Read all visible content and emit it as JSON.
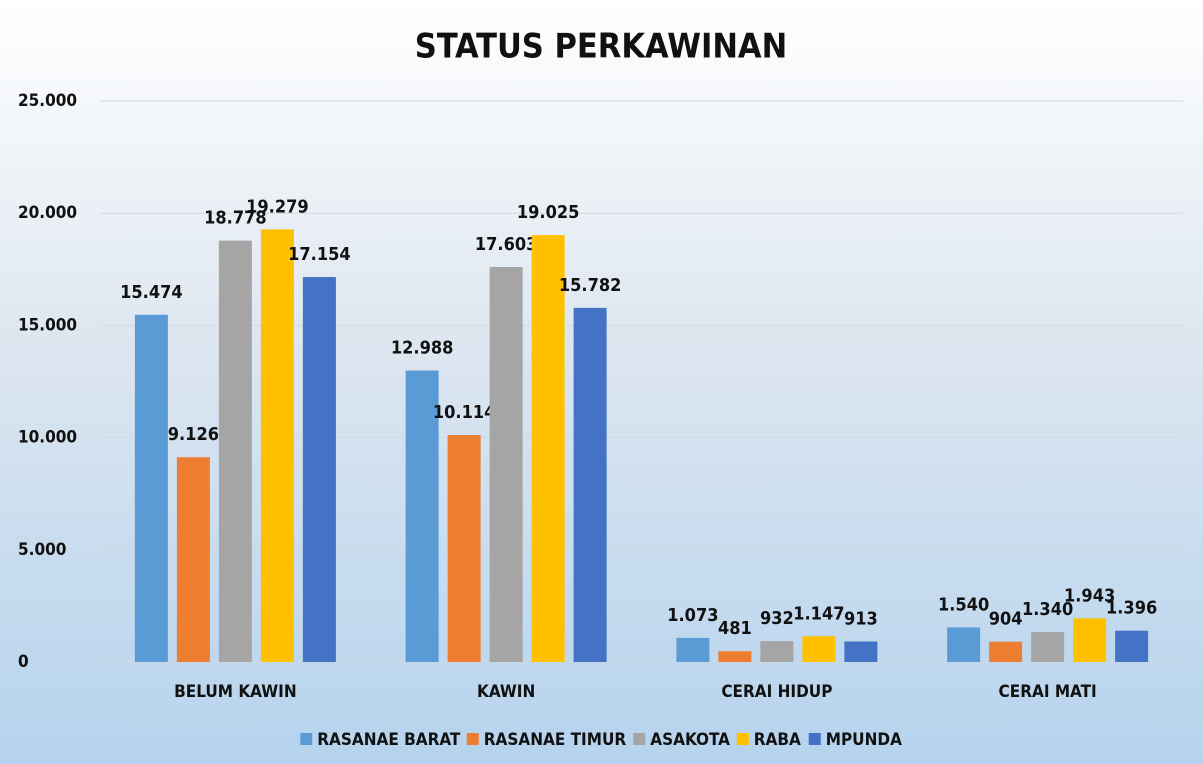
{
  "chart_data": {
    "type": "bar",
    "title": "STATUS PERKAWINAN",
    "categories": [
      "BELUM KAWIN",
      "KAWIN",
      "CERAI HIDUP",
      "CERAI MATI"
    ],
    "series": [
      {
        "name": "RASANAE BARAT",
        "color": "#5b9bd5",
        "values": [
          15474,
          12988,
          1073,
          1540
        ],
        "value_labels": [
          "15.474",
          "12.988",
          "1.073",
          "1.540"
        ]
      },
      {
        "name": "RASANAE TIMUR",
        "color": "#ed7d31",
        "values": [
          9126,
          10114,
          481,
          904
        ],
        "value_labels": [
          "9.126",
          "10.114",
          "481",
          "904"
        ]
      },
      {
        "name": "ASAKOTA",
        "color": "#a5a5a5",
        "values": [
          18778,
          17603,
          932,
          1340
        ],
        "value_labels": [
          "18.778",
          "17.603",
          "932",
          "1.340"
        ]
      },
      {
        "name": "RABA",
        "color": "#ffc000",
        "values": [
          19279,
          19025,
          1147,
          1943
        ],
        "value_labels": [
          "19.279",
          "19.025",
          "1.147",
          "1.943"
        ]
      },
      {
        "name": "MPUNDA",
        "color": "#4472c4",
        "values": [
          17154,
          15782,
          913,
          1396
        ],
        "value_labels": [
          "17.154",
          "15.782",
          "913",
          "1.396"
        ]
      }
    ],
    "ylim": [
      0,
      25000
    ],
    "yticks": [
      0,
      {
        "value": 5000,
        "label": "5.000"
      },
      {
        "value": 10000,
        "label": "10.000"
      },
      {
        "value": 15000,
        "label": "15.000"
      },
      {
        "value": 20000,
        "label": "20.000"
      },
      {
        "value": 25000,
        "label": "25.000"
      }
    ],
    "grid": true,
    "legend": "bottom"
  }
}
